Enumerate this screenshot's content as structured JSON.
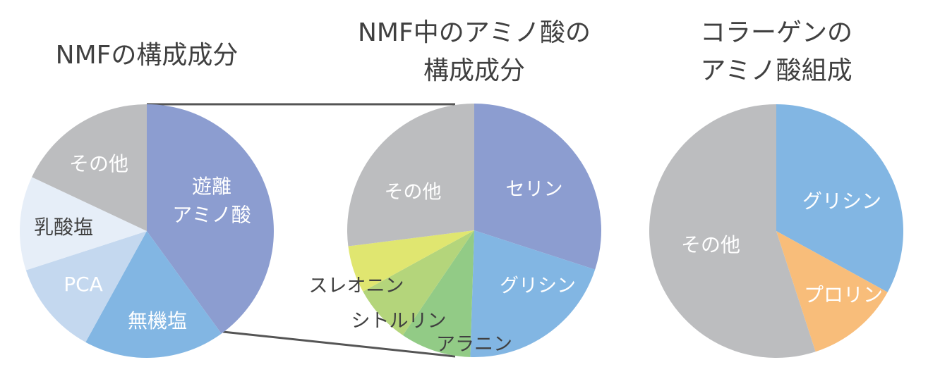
{
  "chart_data": [
    {
      "type": "pie",
      "title": [
        "NMFの構成成分"
      ],
      "slices": [
        {
          "label": "遊離\nアミノ酸",
          "value": 40,
          "color": "#8c9dd0",
          "text_color": "#ffffff"
        },
        {
          "label": "無機塩",
          "value": 18,
          "color": "#82b6e3",
          "text_color": "#ffffff"
        },
        {
          "label": "PCA",
          "value": 12,
          "color": "#c4d8ef",
          "text_color": "#ffffff"
        },
        {
          "label": "乳酸塩",
          "value": 12,
          "color": "#e6eef8",
          "text_color": "#404040"
        },
        {
          "label": "その他",
          "value": 18,
          "color": "#bcbdbf",
          "text_color": "#ffffff"
        }
      ]
    },
    {
      "type": "pie",
      "title": [
        "NMF中のアミノ酸の",
        "構成成分"
      ],
      "slices": [
        {
          "label": "セリン",
          "value": 30,
          "color": "#8c9dd0",
          "text_color": "#ffffff"
        },
        {
          "label": "グリシン",
          "value": 20.5,
          "color": "#82b6e3",
          "text_color": "#ffffff"
        },
        {
          "label": "アラニン",
          "value": 9,
          "color": "#92cb86",
          "text_color": "#404040"
        },
        {
          "label": "シトルリン",
          "value": 7.5,
          "color": "#b4d57b",
          "text_color": "#404040"
        },
        {
          "label": "スレオニン",
          "value": 6,
          "color": "#e0e670",
          "text_color": "#404040"
        },
        {
          "label": "その他",
          "value": 27,
          "color": "#bcbdbf",
          "text_color": "#ffffff"
        }
      ]
    },
    {
      "type": "pie",
      "title": [
        "コラーゲンの",
        "アミノ酸組成"
      ],
      "slices": [
        {
          "label": "グリシン",
          "value": 33,
          "color": "#82b6e3",
          "text_color": "#ffffff"
        },
        {
          "label": "プロリン",
          "value": 12,
          "color": "#f8bd7a",
          "text_color": "#ffffff"
        },
        {
          "label": "その他",
          "value": 55,
          "color": "#bcbdbf",
          "text_color": "#ffffff"
        }
      ]
    }
  ]
}
